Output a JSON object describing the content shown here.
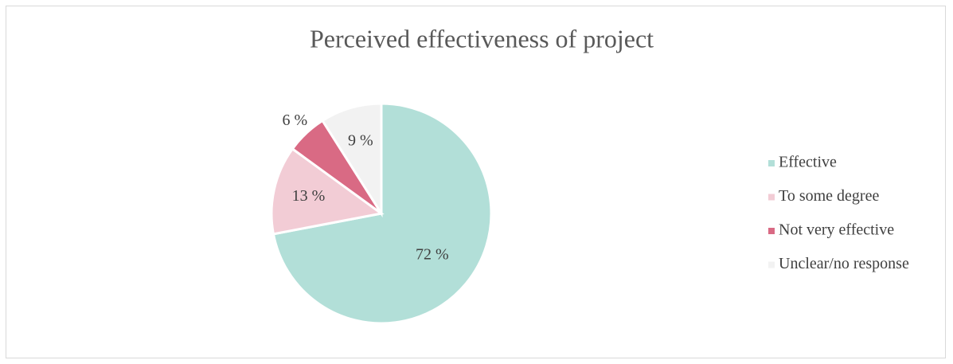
{
  "chart_data": {
    "type": "pie",
    "title": "Perceived effectiveness of project",
    "categories": [
      "Effective",
      "To some degree",
      "Not very effective",
      "Unclear/no response"
    ],
    "values": [
      72,
      13,
      6,
      9
    ],
    "value_labels": [
      "72 %",
      "13 %",
      "6 %",
      "9 %"
    ],
    "colors": [
      "#b2dfd8",
      "#f2ccd5",
      "#d96a84",
      "#f2f2f2"
    ],
    "legend": "right"
  }
}
